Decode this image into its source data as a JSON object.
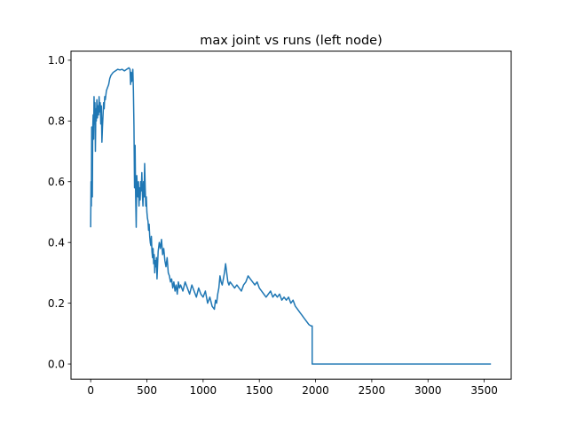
{
  "chart_data": {
    "type": "line",
    "title": "max joint vs runs (left node)",
    "xlabel": "",
    "ylabel": "",
    "xlim": [
      -175,
      3740
    ],
    "ylim": [
      -0.05,
      1.03
    ],
    "xticks": [
      0,
      500,
      1000,
      1500,
      2000,
      2500,
      3000,
      3500
    ],
    "yticks": [
      0.0,
      0.2,
      0.4,
      0.6,
      0.8,
      1.0
    ],
    "xtick_labels": [
      "0",
      "500",
      "1000",
      "1500",
      "2000",
      "2500",
      "3000",
      "3500"
    ],
    "ytick_labels": [
      "0.0",
      "0.2",
      "0.4",
      "0.6",
      "0.8",
      "1.0"
    ],
    "grid": false,
    "series": [
      {
        "color": "#1f77b4",
        "x": [
          0,
          3,
          6,
          9,
          12,
          15,
          18,
          22,
          26,
          30,
          34,
          38,
          42,
          46,
          50,
          55,
          60,
          65,
          70,
          75,
          80,
          85,
          90,
          95,
          100,
          105,
          110,
          115,
          120,
          125,
          130,
          140,
          150,
          160,
          170,
          180,
          200,
          220,
          240,
          260,
          280,
          300,
          320,
          340,
          350,
          355,
          360,
          365,
          370,
          375,
          380,
          385,
          390,
          395,
          400,
          405,
          410,
          415,
          420,
          425,
          430,
          435,
          440,
          445,
          450,
          455,
          460,
          465,
          470,
          475,
          480,
          485,
          490,
          495,
          500,
          505,
          510,
          515,
          520,
          525,
          530,
          535,
          540,
          545,
          550,
          555,
          560,
          565,
          570,
          575,
          580,
          585,
          590,
          600,
          610,
          620,
          630,
          640,
          650,
          660,
          670,
          680,
          690,
          700,
          710,
          720,
          730,
          740,
          750,
          760,
          770,
          780,
          790,
          800,
          820,
          840,
          860,
          880,
          900,
          920,
          940,
          960,
          980,
          1000,
          1020,
          1040,
          1060,
          1080,
          1100,
          1110,
          1120,
          1130,
          1140,
          1150,
          1160,
          1170,
          1180,
          1190,
          1200,
          1210,
          1220,
          1230,
          1240,
          1260,
          1280,
          1300,
          1320,
          1340,
          1360,
          1380,
          1400,
          1420,
          1440,
          1460,
          1480,
          1500,
          1520,
          1540,
          1560,
          1580,
          1600,
          1620,
          1640,
          1660,
          1680,
          1700,
          1720,
          1740,
          1760,
          1780,
          1800,
          1820,
          1840,
          1860,
          1880,
          1900,
          1920,
          1940,
          1960,
          1970,
          1970,
          2000,
          2500,
          3000,
          3560
        ],
        "y": [
          0.45,
          0.6,
          0.52,
          0.78,
          0.72,
          0.55,
          0.77,
          0.82,
          0.74,
          0.88,
          0.79,
          0.86,
          0.7,
          0.84,
          0.8,
          0.87,
          0.81,
          0.85,
          0.82,
          0.88,
          0.83,
          0.86,
          0.79,
          0.85,
          0.73,
          0.78,
          0.82,
          0.86,
          0.84,
          0.88,
          0.87,
          0.9,
          0.91,
          0.92,
          0.94,
          0.95,
          0.96,
          0.965,
          0.97,
          0.968,
          0.97,
          0.965,
          0.97,
          0.975,
          0.97,
          0.92,
          0.96,
          0.93,
          0.95,
          0.97,
          0.9,
          0.78,
          0.58,
          0.72,
          0.55,
          0.45,
          0.62,
          0.58,
          0.55,
          0.6,
          0.52,
          0.58,
          0.54,
          0.6,
          0.57,
          0.63,
          0.56,
          0.52,
          0.6,
          0.55,
          0.66,
          0.58,
          0.52,
          0.55,
          0.5,
          0.48,
          0.47,
          0.44,
          0.46,
          0.42,
          0.4,
          0.39,
          0.42,
          0.37,
          0.35,
          0.38,
          0.33,
          0.36,
          0.3,
          0.34,
          0.32,
          0.35,
          0.28,
          0.37,
          0.4,
          0.38,
          0.41,
          0.36,
          0.38,
          0.34,
          0.32,
          0.35,
          0.3,
          0.29,
          0.27,
          0.28,
          0.25,
          0.27,
          0.24,
          0.26,
          0.23,
          0.27,
          0.25,
          0.26,
          0.24,
          0.27,
          0.25,
          0.23,
          0.26,
          0.24,
          0.22,
          0.25,
          0.23,
          0.22,
          0.24,
          0.2,
          0.22,
          0.19,
          0.18,
          0.21,
          0.2,
          0.23,
          0.25,
          0.29,
          0.27,
          0.26,
          0.28,
          0.3,
          0.33,
          0.3,
          0.27,
          0.26,
          0.27,
          0.26,
          0.25,
          0.26,
          0.25,
          0.24,
          0.26,
          0.27,
          0.29,
          0.28,
          0.27,
          0.26,
          0.27,
          0.25,
          0.24,
          0.23,
          0.22,
          0.23,
          0.24,
          0.22,
          0.23,
          0.22,
          0.23,
          0.21,
          0.22,
          0.21,
          0.22,
          0.2,
          0.21,
          0.19,
          0.18,
          0.17,
          0.16,
          0.15,
          0.14,
          0.13,
          0.125,
          0.125,
          0.0,
          0.0,
          0.0,
          0.0,
          0.0
        ]
      }
    ]
  }
}
